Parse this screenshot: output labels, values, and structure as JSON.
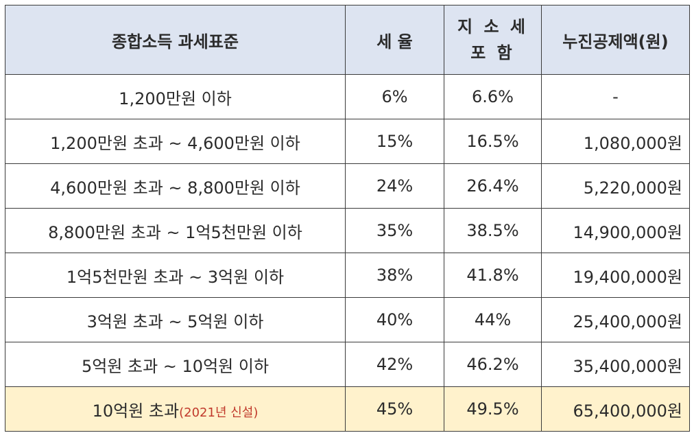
{
  "headers": {
    "bracket": "종합소득 과세표준",
    "rate": "세 율",
    "local_tax_line1": "지 소 세",
    "local_tax_line2": "포 함",
    "deduction": "누진공제액(원)"
  },
  "rows": [
    {
      "bracket": "1,200만원 이하",
      "rate": "6%",
      "with_local": "6.6%",
      "deduction": "-"
    },
    {
      "bracket": "1,200만원 초과 ~ 4,600만원 이하",
      "rate": "15%",
      "with_local": "16.5%",
      "deduction": "1,080,000원"
    },
    {
      "bracket": "4,600만원 초과 ~ 8,800만원 이하",
      "rate": "24%",
      "with_local": "26.4%",
      "deduction": "5,220,000원"
    },
    {
      "bracket": "8,800만원 초과 ~ 1억5천만원 이하",
      "rate": "35%",
      "with_local": "38.5%",
      "deduction": "14,900,000원"
    },
    {
      "bracket": "1억5천만원 초과 ~ 3억원 이하",
      "rate": "38%",
      "with_local": "41.8%",
      "deduction": "19,400,000원"
    },
    {
      "bracket": "3억원 초과 ~ 5억원 이하",
      "rate": "40%",
      "with_local": "44%",
      "deduction": "25,400,000원"
    },
    {
      "bracket": "5억원 초과 ~ 10억원 이하",
      "rate": "42%",
      "with_local": "46.2%",
      "deduction": "35,400,000원"
    },
    {
      "bracket": "10억원 초과",
      "note": "(2021년 신설)",
      "rate": "45%",
      "with_local": "49.5%",
      "deduction": "65,400,000원"
    }
  ],
  "colors": {
    "header_bg": "#dde4f1",
    "highlight_bg": "#fff2cc",
    "note_text": "#c0392b"
  }
}
